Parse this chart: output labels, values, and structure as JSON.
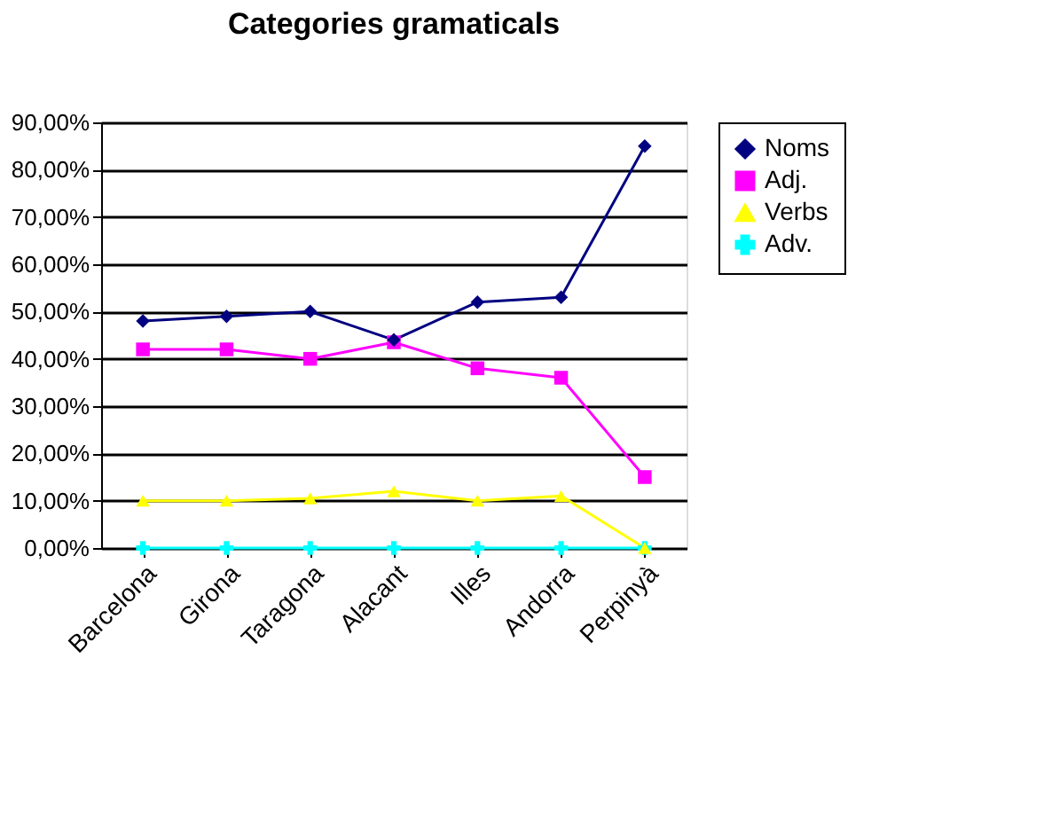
{
  "chart_data": {
    "type": "line",
    "title": "Categories gramaticals",
    "categories": [
      "Barcelona",
      "Girona",
      "Taragona",
      "Alacant",
      "Illes",
      "Andorra",
      "Perpinyà"
    ],
    "series": [
      {
        "name": "Noms",
        "color": "#000080",
        "marker": "diamond",
        "values": [
          48,
          49,
          50,
          44,
          52,
          53,
          85
        ]
      },
      {
        "name": "Adj.",
        "color": "#ff00ff",
        "marker": "square",
        "values": [
          42,
          42,
          40,
          43.5,
          38,
          36,
          15
        ]
      },
      {
        "name": "Verbs",
        "color": "#ffff00",
        "marker": "triangle",
        "values": [
          10,
          10,
          10.5,
          12,
          10,
          11,
          0
        ]
      },
      {
        "name": "Adv.",
        "color": "#00ffff",
        "marker": "cross",
        "values": [
          0,
          0,
          0,
          0,
          0,
          0,
          0
        ]
      }
    ],
    "ylim": [
      0,
      90
    ],
    "yticks": [
      {
        "value": 0,
        "label": "0,00%"
      },
      {
        "value": 10,
        "label": "10,00%"
      },
      {
        "value": 20,
        "label": "20,00%"
      },
      {
        "value": 30,
        "label": "30,00%"
      },
      {
        "value": 40,
        "label": "40,00%"
      },
      {
        "value": 50,
        "label": "50,00%"
      },
      {
        "value": 60,
        "label": "60,00%"
      },
      {
        "value": 70,
        "label": "70,00%"
      },
      {
        "value": 80,
        "label": "80,00%"
      },
      {
        "value": 90,
        "label": "90,00%"
      }
    ],
    "grid": "y",
    "legend": "right",
    "line_style": "solid"
  }
}
